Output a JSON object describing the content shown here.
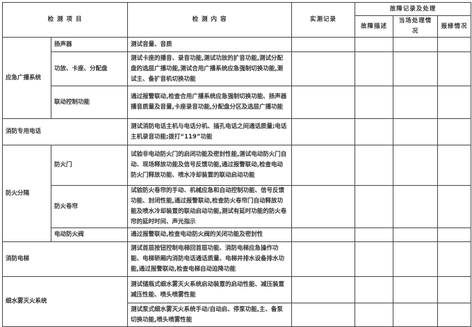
{
  "header": {
    "item": "检 测 项 目",
    "content": "检 测 内 容",
    "record": "实测记录",
    "fault_group": "故障记录及处理",
    "fault_desc": "故障描述",
    "onsite": "当场处理情况",
    "repair": "报修情况"
  },
  "rows": {
    "broadcast": {
      "label": "应急广播系统",
      "subs": [
        {
          "name": "扬声器",
          "content": "测试音量、音质"
        },
        {
          "name": "功放、卡座、分配盘",
          "content": "测试卡座的播音、录音功能,测试功放的扩音功能,测试分配盘的选层广播功能,测试合用广播系统应急强制切换功能,测试主、备扩音机切换功能"
        },
        {
          "name": "联动控制功能",
          "content": "通过报警联动,检查合用广播系统应急强制切换功能、扬声器播音质量及音量,卡座录音功能,分配盘分区及选层广播功能"
        }
      ]
    },
    "phone": {
      "label": "消防专用电话",
      "content": "测试消防电话主机与电话分机、插孔电话之间通话质量;电话主机录音功能;拨打“119”功能"
    },
    "separation": {
      "label": "防火分隔",
      "subs": [
        {
          "name": "防火门",
          "content": "试验非电动防火门的启闭功能及密封性能,测试电动防火门自动、现场释放功能及信号反馈功能,通过报警联动,检查电动防火门释放功能、喷水冷却装置的联动启动功能"
        },
        {
          "name": "防火卷帘",
          "content": "试验防火卷帘的手动、机械应急和自动控制功能、信号反馈功能、封闭性能,通过报警联动,检查防火卷帘门自动释放功能及喷水冷却装置的联动启动功能,测试有延时功能的防火卷帘的延时时间、声光指示"
        },
        {
          "name": "电动防火阀",
          "content": "通过报警联动,检查电动防火阀的关闭功能及密封性"
        }
      ]
    },
    "elevator": {
      "label": "消防电梯",
      "content": "测试首层按钮控制电梯回首层功能、消防电梯应急操作功能、电梯轿厢内消防电话通话质量、电梯井排水设备排水功能,通过报警联动,检查电梯自动迫降功能"
    },
    "mist": {
      "label": "细水雾灭火系统",
      "contents": [
        "测试储瓶式细水雾灭火系统启动装置的启动性能、减压装置减压性能、喷头喷雾性能",
        "测试泵式细水雾灭火系统手动/自动启、停泵功能,主、备泵切换功能,喷头喷雾性能"
      ]
    }
  }
}
